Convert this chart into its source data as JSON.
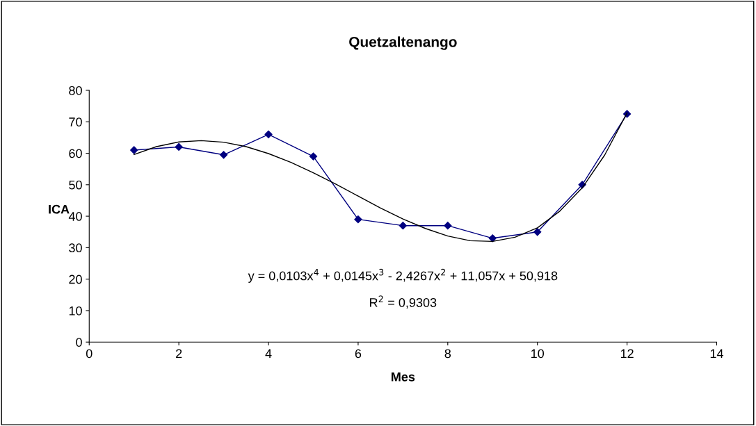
{
  "chart_data": {
    "type": "line",
    "title": "Quetzaltenango",
    "xlabel": "Mes",
    "ylabel": "ICA",
    "series": [
      {
        "color": "#000080",
        "marker": "diamond",
        "x": [
          1,
          2,
          3,
          4,
          5,
          6,
          7,
          8,
          9,
          10,
          11,
          12
        ],
        "values": [
          61,
          62,
          59.5,
          66,
          59,
          39,
          37,
          37,
          33,
          35,
          50,
          72.5
        ]
      },
      {
        "color": "#000000",
        "marker": "none",
        "x": [
          1,
          1.5,
          2,
          2.5,
          3,
          3.5,
          4,
          4.5,
          5,
          5.5,
          6,
          6.5,
          7,
          7.5,
          8,
          8.5,
          9,
          9.5,
          10,
          10.5,
          11,
          11.5,
          12
        ],
        "values": [
          59.6,
          62.1,
          63.6,
          64,
          63.5,
          62.1,
          59.9,
          57.1,
          53.8,
          50.2,
          46.4,
          42.6,
          39.1,
          36.1,
          33.7,
          32.2,
          32,
          33.3,
          36.3,
          41.6,
          49,
          59.4,
          72.8
        ]
      }
    ],
    "annotations": [
      "y = 0,0103x$^{4}$ + 0,0145x$^{3}$ - 2,4267x$^{2}$ + 11,057x + 50,918",
      "R$^{2}$ = 0,9303"
    ],
    "xlim": [
      0,
      14
    ],
    "xticks": [
      0,
      2,
      4,
      6,
      8,
      10,
      12,
      14
    ],
    "ylim": [
      0,
      80
    ],
    "yticks": [
      0,
      10,
      20,
      30,
      40,
      50,
      60,
      70,
      80
    ],
    "grid": false,
    "legend": false,
    "line_style": "solid"
  }
}
